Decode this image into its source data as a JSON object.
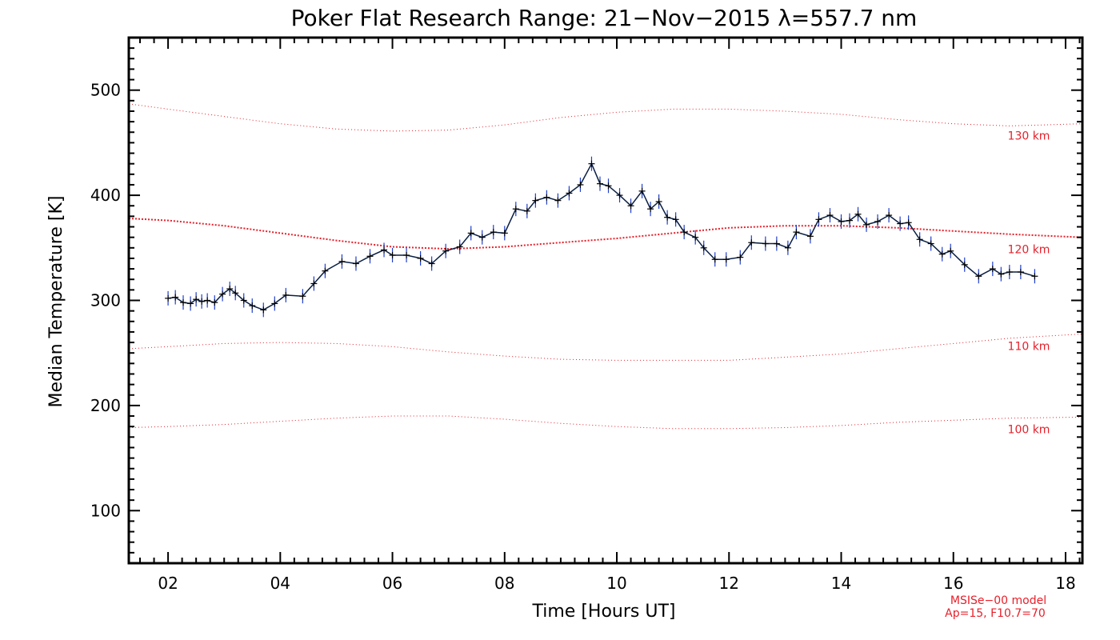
{
  "chart_data": {
    "type": "line",
    "title": "Poker Flat Research Range: 21−Nov−2015 λ=557.7 nm",
    "xlabel": "Time [Hours UT]",
    "ylabel": "Median Temperature [K]",
    "xlim": [
      1.3,
      18.3
    ],
    "ylim": [
      50,
      550
    ],
    "x_ticks": [
      2,
      4,
      6,
      8,
      10,
      12,
      14,
      16,
      18
    ],
    "x_tick_labels": [
      "02",
      "04",
      "06",
      "08",
      "10",
      "12",
      "14",
      "16",
      "18"
    ],
    "y_ticks": [
      100,
      200,
      300,
      400,
      500
    ],
    "y_tick_labels": [
      "100",
      "200",
      "300",
      "400",
      "500"
    ],
    "series": [
      {
        "color": "#0a1f44",
        "error_color": "#1f3fd0",
        "x": [
          2.0,
          2.13,
          2.27,
          2.4,
          2.5,
          2.6,
          2.7,
          2.83,
          2.97,
          3.1,
          3.2,
          3.35,
          3.5,
          3.7,
          3.9,
          4.1,
          4.4,
          4.6,
          4.8,
          5.1,
          5.35,
          5.6,
          5.85,
          6.0,
          6.25,
          6.5,
          6.7,
          6.95,
          7.2,
          7.4,
          7.6,
          7.8,
          8.0,
          8.2,
          8.4,
          8.55,
          8.75,
          8.95,
          9.15,
          9.35,
          9.55,
          9.7,
          9.85,
          10.05,
          10.25,
          10.45,
          10.6,
          10.75,
          10.9,
          11.05,
          11.2,
          11.4,
          11.55,
          11.75,
          11.95,
          12.2,
          12.4,
          12.65,
          12.85,
          13.05,
          13.2,
          13.45,
          13.6,
          13.8,
          14.0,
          14.15,
          14.3,
          14.45,
          14.65,
          14.85,
          15.05,
          15.2,
          15.4,
          15.6,
          15.8,
          15.95,
          16.2,
          16.45,
          16.7,
          16.85,
          17.0,
          17.2,
          17.45
        ],
        "y": [
          302,
          303,
          298,
          297,
          301,
          299,
          300,
          298,
          306,
          311,
          307,
          300,
          295,
          291,
          297,
          305,
          304,
          316,
          328,
          337,
          335,
          342,
          348,
          343,
          343,
          340,
          335,
          347,
          351,
          364,
          360,
          365,
          364,
          387,
          385,
          395,
          398,
          395,
          402,
          410,
          430,
          411,
          409,
          400,
          390,
          404,
          387,
          394,
          379,
          377,
          365,
          360,
          350,
          339,
          339,
          341,
          355,
          354,
          354,
          350,
          365,
          361,
          377,
          381,
          375,
          376,
          382,
          372,
          375,
          381,
          373,
          374,
          358,
          354,
          344,
          347,
          334,
          323,
          330,
          325,
          327,
          327,
          323
        ]
      }
    ],
    "model_curves": [
      {
        "label": "130 km",
        "x": [
          1.3,
          2,
          3,
          4,
          5,
          6,
          7,
          8,
          9,
          10,
          11,
          12,
          13,
          14,
          15,
          16,
          17,
          18.3
        ],
        "y": [
          487,
          482,
          475,
          468,
          463,
          461,
          462,
          467,
          474,
          479,
          482,
          482,
          480,
          477,
          472,
          468,
          466,
          468
        ]
      },
      {
        "label": "120 km",
        "x": [
          1.3,
          2,
          3,
          4,
          5,
          6,
          7,
          8,
          9,
          10,
          11,
          12,
          13,
          14,
          15,
          16,
          17,
          18.3
        ],
        "y": [
          378,
          376,
          371,
          364,
          357,
          351,
          349,
          351,
          355,
          359,
          364,
          369,
          371,
          371,
          369,
          366,
          363,
          360
        ]
      },
      {
        "label": "110 km",
        "x": [
          1.3,
          2,
          3,
          4,
          5,
          6,
          7,
          8,
          9,
          10,
          11,
          12,
          13,
          14,
          15,
          16,
          17,
          18.3
        ],
        "y": [
          254,
          256,
          259,
          260,
          259,
          256,
          251,
          247,
          244,
          243,
          243,
          243,
          246,
          249,
          254,
          259,
          264,
          268
        ]
      },
      {
        "label": "100 km",
        "x": [
          1.3,
          2,
          3,
          4,
          5,
          6,
          7,
          8,
          9,
          10,
          11,
          12,
          13,
          14,
          15,
          16,
          17,
          18.3
        ],
        "y": [
          179,
          180,
          182,
          185,
          188,
          190,
          190,
          187,
          183,
          180,
          178,
          178,
          179,
          181,
          184,
          186,
          188,
          189
        ]
      }
    ],
    "model_note": [
      "MSISe−00 model",
      "Ap=15, F10.7=70"
    ],
    "grid": false
  },
  "colors": {
    "data_line": "#0a1f44",
    "error_bar": "#1f3fd0",
    "model": "#e8202a"
  }
}
